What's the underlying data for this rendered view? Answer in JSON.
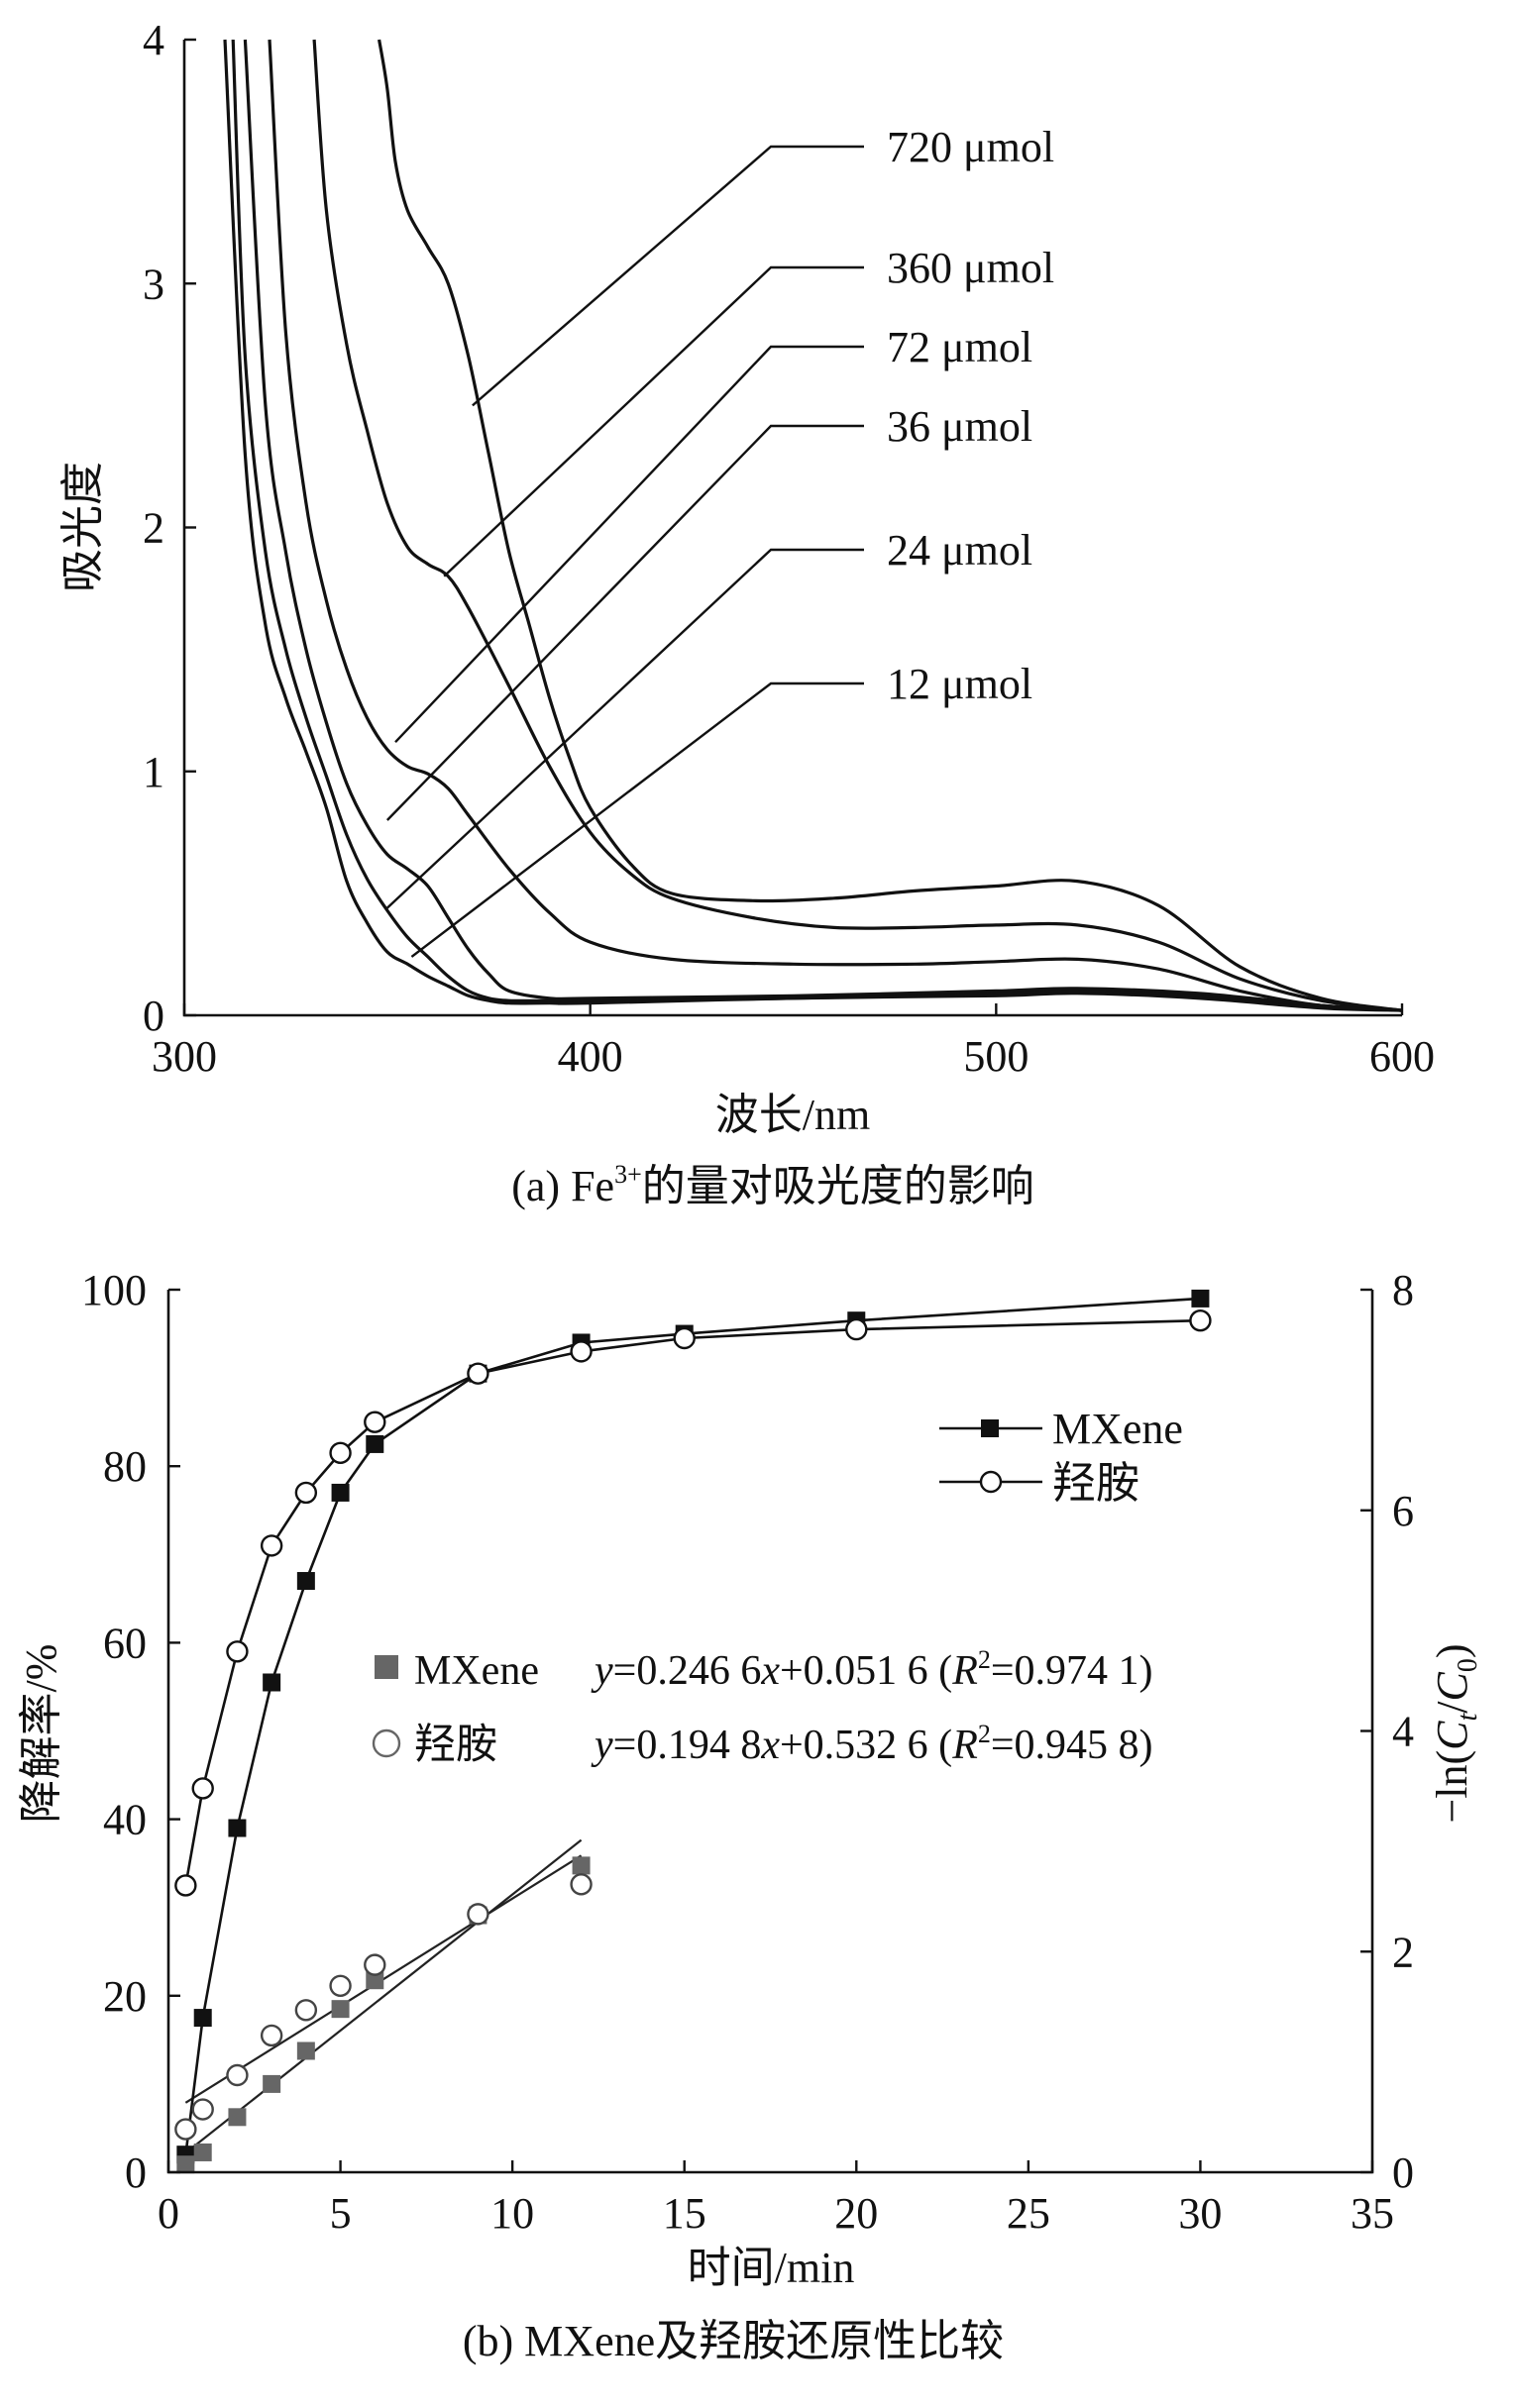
{
  "chart_data": [
    {
      "type": "line",
      "title": "",
      "caption": "(a) Fe³⁺的量对吸光度的影响",
      "caption_parts": {
        "prefix": "(a) Fe",
        "sup": "3+",
        "suffix": "的量对吸光度的影响"
      },
      "xlabel": "波长/nm",
      "ylabel": "吸光度",
      "xlim": [
        300,
        600
      ],
      "ylim": [
        0,
        4
      ],
      "xticks": [
        300,
        400,
        500,
        600
      ],
      "yticks": [
        0,
        1,
        2,
        3,
        4
      ],
      "series": [
        {
          "name": "12 μmol",
          "x": [
            310,
            315,
            320,
            325,
            330,
            335,
            340,
            345,
            350,
            355,
            360,
            365,
            370,
            375,
            380,
            390,
            400,
            450,
            500,
            520,
            550,
            580,
            600
          ],
          "y": [
            4.0,
            2.3,
            1.6,
            1.3,
            1.08,
            0.85,
            0.55,
            0.38,
            0.26,
            0.21,
            0.16,
            0.12,
            0.08,
            0.06,
            0.05,
            0.05,
            0.05,
            0.07,
            0.08,
            0.09,
            0.07,
            0.03,
            0.02
          ],
          "label_anchor": [
            356,
            0.24
          ]
        },
        {
          "name": "24 μmol",
          "x": [
            312,
            315,
            320,
            325,
            330,
            335,
            340,
            345,
            350,
            355,
            360,
            365,
            370,
            375,
            380,
            390,
            400,
            450,
            500,
            520,
            550,
            580,
            600
          ],
          "y": [
            4.0,
            2.7,
            1.9,
            1.5,
            1.22,
            0.98,
            0.74,
            0.56,
            0.43,
            0.32,
            0.24,
            0.16,
            0.1,
            0.07,
            0.06,
            0.06,
            0.06,
            0.07,
            0.09,
            0.1,
            0.08,
            0.04,
            0.02
          ],
          "label_anchor": [
            350,
            0.44
          ]
        },
        {
          "name": "36 μmol",
          "x": [
            315,
            320,
            325,
            330,
            335,
            340,
            345,
            350,
            355,
            360,
            365,
            370,
            375,
            380,
            390,
            400,
            450,
            500,
            520,
            550,
            580,
            600
          ],
          "y": [
            4.0,
            2.5,
            1.9,
            1.5,
            1.2,
            0.95,
            0.78,
            0.66,
            0.6,
            0.53,
            0.4,
            0.27,
            0.17,
            0.1,
            0.07,
            0.07,
            0.08,
            0.1,
            0.11,
            0.09,
            0.04,
            0.02
          ],
          "label_anchor": [
            350,
            0.8
          ]
        },
        {
          "name": "72 μmol",
          "x": [
            321,
            325,
            330,
            335,
            340,
            345,
            350,
            355,
            360,
            365,
            370,
            380,
            390,
            400,
            420,
            450,
            480,
            500,
            520,
            540,
            560,
            580,
            600
          ],
          "y": [
            4.0,
            2.8,
            2.1,
            1.7,
            1.42,
            1.22,
            1.09,
            1.02,
            0.99,
            0.93,
            0.82,
            0.6,
            0.42,
            0.3,
            0.23,
            0.21,
            0.21,
            0.22,
            0.23,
            0.19,
            0.1,
            0.04,
            0.02
          ],
          "label_anchor": [
            352,
            1.12
          ]
        },
        {
          "name": "360 μmol",
          "x": [
            332,
            335,
            340,
            345,
            350,
            355,
            360,
            365,
            370,
            380,
            390,
            400,
            410,
            420,
            440,
            460,
            480,
            500,
            520,
            540,
            560,
            580,
            600
          ],
          "y": [
            4.0,
            3.3,
            2.75,
            2.4,
            2.1,
            1.92,
            1.85,
            1.8,
            1.67,
            1.35,
            1.02,
            0.75,
            0.58,
            0.48,
            0.4,
            0.36,
            0.36,
            0.37,
            0.37,
            0.3,
            0.15,
            0.06,
            0.02
          ],
          "label_anchor": [
            364,
            1.8
          ]
        },
        {
          "name": "720 μmol",
          "x": [
            348,
            350,
            352,
            355,
            360,
            365,
            370,
            375,
            380,
            385,
            390,
            395,
            400,
            410,
            420,
            440,
            460,
            480,
            500,
            520,
            540,
            560,
            580,
            600
          ],
          "y": [
            4.0,
            3.8,
            3.5,
            3.3,
            3.15,
            3.0,
            2.7,
            2.3,
            1.9,
            1.6,
            1.3,
            1.05,
            0.85,
            0.62,
            0.5,
            0.47,
            0.48,
            0.51,
            0.53,
            0.55,
            0.45,
            0.2,
            0.07,
            0.02
          ],
          "label_anchor": [
            371,
            2.5
          ]
        }
      ]
    },
    {
      "type": "line",
      "title": "",
      "caption": "(b) MXene及羟胺还原性比较",
      "xlabel": "时间/min",
      "ylabel": "降解率/%",
      "ylabel_right": "−ln(Ct/C0)",
      "ylabel_right_parts": {
        "pre": "−ln(",
        "c1": "C",
        "s1": "t",
        "slash": "/",
        "c2": "C",
        "s2": "0",
        "post": ")"
      },
      "xlim": [
        0,
        35
      ],
      "ylim": [
        0,
        100
      ],
      "ylim_right": [
        0,
        8
      ],
      "xticks": [
        0,
        5,
        10,
        15,
        20,
        25,
        30,
        35
      ],
      "yticks": [
        0,
        20,
        40,
        60,
        80,
        100
      ],
      "yticks_right": [
        0,
        2,
        4,
        6,
        8
      ],
      "legend_position": "top-right",
      "series": [
        {
          "name": "MXene",
          "axis": "left",
          "marker": "filled-square",
          "connected": true,
          "x": [
            0.5,
            1,
            2,
            3,
            4,
            5,
            6,
            9,
            12,
            15,
            20,
            30
          ],
          "y": [
            2,
            17.5,
            39,
            55.5,
            67,
            77,
            82.5,
            90.5,
            94,
            95,
            96.5,
            99
          ]
        },
        {
          "name": "羟胺",
          "axis": "left",
          "marker": "open-circle",
          "connected": true,
          "x": [
            0.5,
            1,
            2,
            3,
            4,
            5,
            6,
            9,
            12,
            15,
            20,
            30
          ],
          "y": [
            32.5,
            43.5,
            59,
            71,
            77,
            81.5,
            85,
            90.5,
            93,
            94.5,
            95.5,
            96.5
          ]
        },
        {
          "name": "MXene",
          "axis": "right",
          "marker": "gray-square",
          "connected": false,
          "x": [
            0.5,
            1,
            2,
            3,
            4,
            5,
            6,
            9,
            12
          ],
          "y": [
            0.07,
            0.18,
            0.5,
            0.8,
            1.1,
            1.48,
            1.74,
            2.33,
            2.78
          ],
          "fit": {
            "slope": 0.2466,
            "intercept": 0.0516,
            "x_range": [
              0.5,
              12
            ],
            "equation": "y=0.246 6x+0.051 6(R²=0.974 1)",
            "eq_parts": {
              "y": "y",
              "mid1": "=0.246 6",
              "x": "x",
              "mid2": "+0.051 6 (",
              "R": "R",
              "sup": "2",
              "tail": "=0.974 1)"
            }
          }
        },
        {
          "name": "羟胺",
          "axis": "right",
          "marker": "open-circle",
          "connected": false,
          "x": [
            0.5,
            1,
            2,
            3,
            4,
            5,
            6,
            9,
            12
          ],
          "y": [
            0.39,
            0.57,
            0.88,
            1.24,
            1.47,
            1.69,
            1.88,
            2.34,
            2.61
          ],
          "fit": {
            "slope": 0.1948,
            "intercept": 0.5326,
            "x_range": [
              0.5,
              12
            ],
            "equation": "y=0.194 8x+0.532 6(R²=0.945 8)",
            "eq_parts": {
              "y": "y",
              "mid1": "=0.194 8",
              "x": "x",
              "mid2": "+0.532 6 (",
              "R": "R",
              "sup": "2",
              "tail": "=0.945 8)"
            }
          }
        }
      ]
    }
  ]
}
